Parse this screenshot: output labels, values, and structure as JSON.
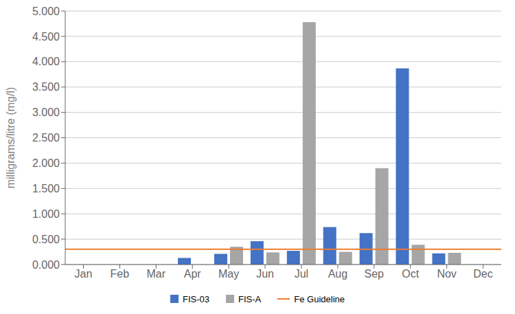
{
  "chart_data": {
    "type": "bar",
    "categories": [
      "Jan",
      "Feb",
      "Mar",
      "Apr",
      "May",
      "Jun",
      "Jul",
      "Aug",
      "Sep",
      "Oct",
      "Nov",
      "Dec"
    ],
    "series": [
      {
        "name": "FIS-03",
        "color": "#4472C4",
        "values": [
          0.0,
          0.0,
          0.0,
          0.13,
          0.21,
          0.46,
          0.27,
          0.74,
          0.62,
          3.87,
          0.22,
          0.0
        ]
      },
      {
        "name": "FIS-A",
        "color": "#A6A6A6",
        "values": [
          0.0,
          0.0,
          0.0,
          0.0,
          0.35,
          0.24,
          4.78,
          0.25,
          1.9,
          0.39,
          0.23,
          0.0
        ]
      }
    ],
    "guideline": {
      "name": "Fe Guideline",
      "value": 0.3,
      "color": "#ED7D31"
    },
    "ylabel": "milligrams/litre (mg/l)",
    "ylim": [
      0.0,
      5.0
    ],
    "yticks": [
      {
        "value": 0.0,
        "label": "0.000"
      },
      {
        "value": 0.5,
        "label": "0.500"
      },
      {
        "value": 1.0,
        "label": "1.000"
      },
      {
        "value": 1.5,
        "label": "1.500"
      },
      {
        "value": 2.0,
        "label": "2.000"
      },
      {
        "value": 2.5,
        "label": "2.500"
      },
      {
        "value": 3.0,
        "label": "3.000"
      },
      {
        "value": 3.5,
        "label": "3.500"
      },
      {
        "value": 4.0,
        "label": "4.000"
      },
      {
        "value": 4.5,
        "label": "4.500"
      },
      {
        "value": 5.0,
        "label": "5.000"
      }
    ],
    "grid": true,
    "legend": "bottom"
  }
}
